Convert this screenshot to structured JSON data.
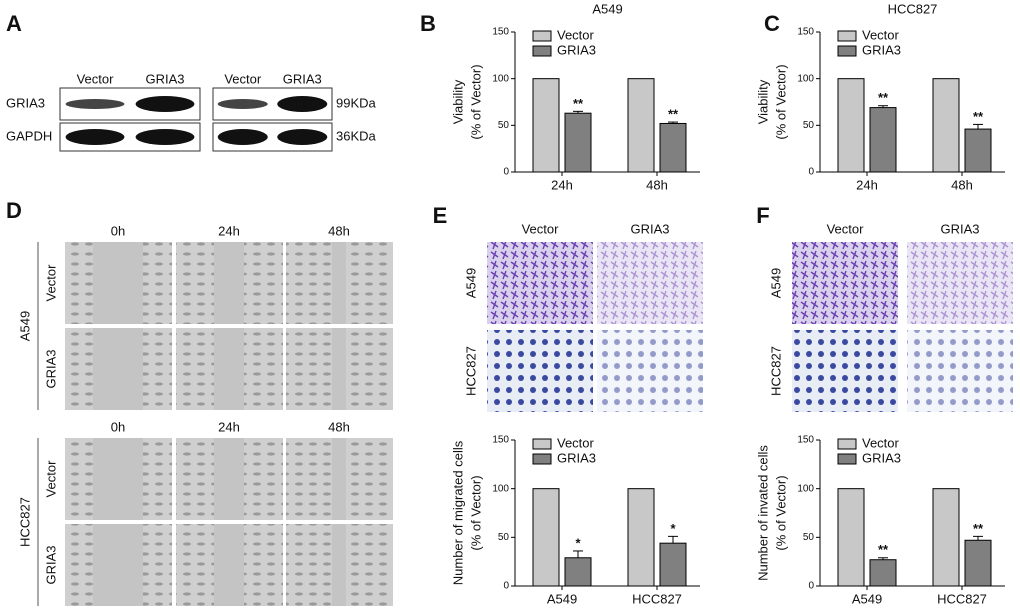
{
  "panels": {
    "letters": [
      "A",
      "B",
      "C",
      "D",
      "E",
      "F"
    ],
    "blot": {
      "blocks": [
        {
          "columns": [
            "Vector",
            "GRIA3"
          ]
        },
        {
          "columns": [
            "Vector",
            "GRIA3"
          ]
        }
      ],
      "rows": [
        "GRIA3",
        "GAPDH"
      ],
      "sizes": [
        "99KDa",
        "36KDa"
      ]
    },
    "wound": {
      "groups": [
        {
          "name": "A549",
          "times": [
            "0h",
            "24h",
            "48h"
          ],
          "rows": [
            "Vector",
            "GRIA3"
          ]
        },
        {
          "name": "HCC827",
          "times": [
            "0h",
            "24h",
            "48h"
          ],
          "rows": [
            "Vector",
            "GRIA3"
          ]
        }
      ]
    },
    "transwell": [
      {
        "columns": [
          "Vector",
          "GRIA3"
        ],
        "rows": [
          "A549",
          "HCC827"
        ]
      },
      {
        "columns": [
          "Vector",
          "GRIA3"
        ],
        "rows": [
          "A549",
          "HCC827"
        ]
      }
    ]
  },
  "chart_data": [
    {
      "type": "bar",
      "title": "A549",
      "y_label": [
        "Viability",
        "(% of Vector)"
      ],
      "categories": [
        "24h",
        "48h"
      ],
      "series": [
        {
          "name": "Vector",
          "color": "#c8c8c8",
          "values": [
            100,
            100
          ]
        },
        {
          "name": "GRIA3",
          "color": "#808080",
          "values": [
            63,
            52
          ],
          "errors": [
            2,
            1.5
          ],
          "labels": [
            "**",
            "**"
          ]
        }
      ],
      "ylim": [
        0,
        150
      ],
      "yticks": [
        0,
        50,
        100,
        150
      ]
    },
    {
      "type": "bar",
      "title": "HCC827",
      "y_label": [
        "Viability",
        "(% of Vector)"
      ],
      "categories": [
        "24h",
        "48h"
      ],
      "series": [
        {
          "name": "Vector",
          "color": "#c8c8c8",
          "values": [
            100,
            100
          ]
        },
        {
          "name": "GRIA3",
          "color": "#808080",
          "values": [
            69,
            46
          ],
          "errors": [
            2,
            5
          ],
          "labels": [
            "**",
            "**"
          ]
        }
      ],
      "ylim": [
        0,
        150
      ],
      "yticks": [
        0,
        50,
        100,
        150
      ]
    },
    {
      "type": "bar",
      "y_label": [
        "Number of migrated cells",
        "(% of Vector)"
      ],
      "categories": [
        "A549",
        "HCC827"
      ],
      "series": [
        {
          "name": "Vector",
          "color": "#c8c8c8",
          "values": [
            100,
            100
          ]
        },
        {
          "name": "GRIA3",
          "color": "#808080",
          "values": [
            29,
            44
          ],
          "errors": [
            7,
            7
          ],
          "labels": [
            "*",
            "*"
          ]
        }
      ],
      "ylim": [
        0,
        150
      ],
      "yticks": [
        0,
        50,
        100,
        150
      ]
    },
    {
      "type": "bar",
      "y_label": [
        "Number of invated cells",
        "(% of Vector)"
      ],
      "categories": [
        "A549",
        "HCC827"
      ],
      "series": [
        {
          "name": "Vector",
          "color": "#c8c8c8",
          "values": [
            100,
            100
          ]
        },
        {
          "name": "GRIA3",
          "color": "#808080",
          "values": [
            27,
            47
          ],
          "errors": [
            2,
            4
          ],
          "labels": [
            "**",
            "**"
          ]
        }
      ],
      "ylim": [
        0,
        150
      ],
      "yticks": [
        0,
        50,
        100,
        150
      ]
    }
  ]
}
